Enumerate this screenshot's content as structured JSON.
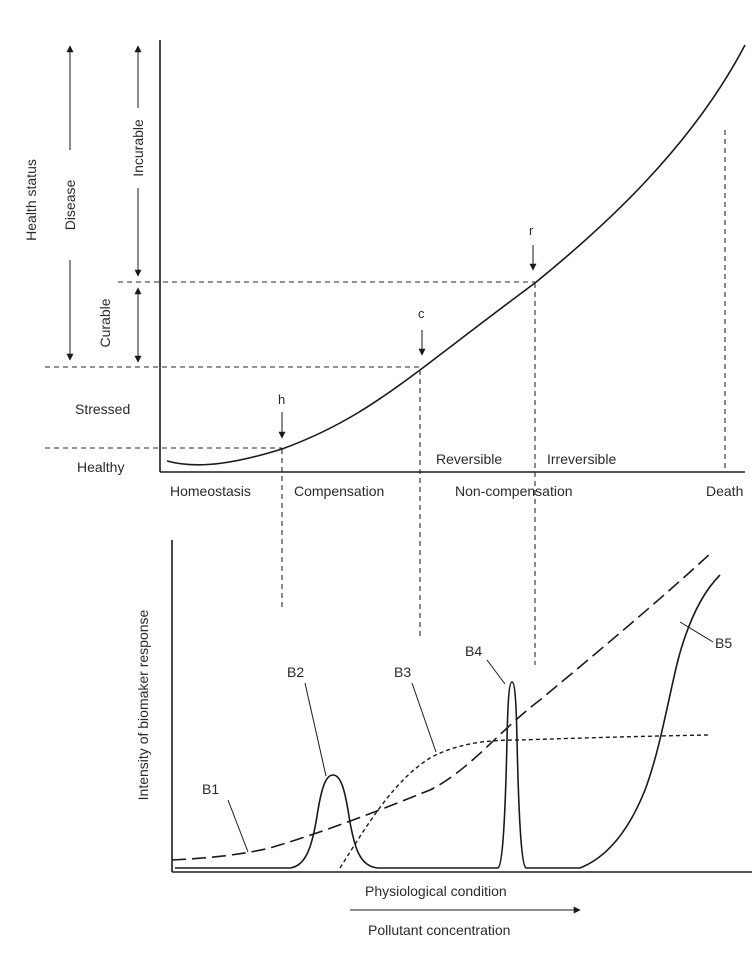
{
  "top_panel": {
    "y_axis_title": "Health status",
    "left_brackets": {
      "disease": "Disease",
      "incurable": "Incurable",
      "curable": "Curable"
    },
    "states": [
      "Stressed",
      "Healthy"
    ],
    "markers": {
      "h": "h",
      "c": "c",
      "r": "r"
    },
    "region_labels": {
      "reversible": "Reversible",
      "irreversible": "Irreversible"
    },
    "x_stages": [
      "Homeostasis",
      "Compensation",
      "Non-compensation",
      "Death"
    ]
  },
  "bottom_panel": {
    "y_axis_title": "Intensity of biomaker response",
    "biomarkers": [
      "B1",
      "B2",
      "B3",
      "B4",
      "B5"
    ],
    "x_label_1": "Physiological condition",
    "x_label_2": "Pollutant concentration"
  },
  "colors": {
    "ink": "#1a1a1a",
    "background": "#ffffff"
  }
}
